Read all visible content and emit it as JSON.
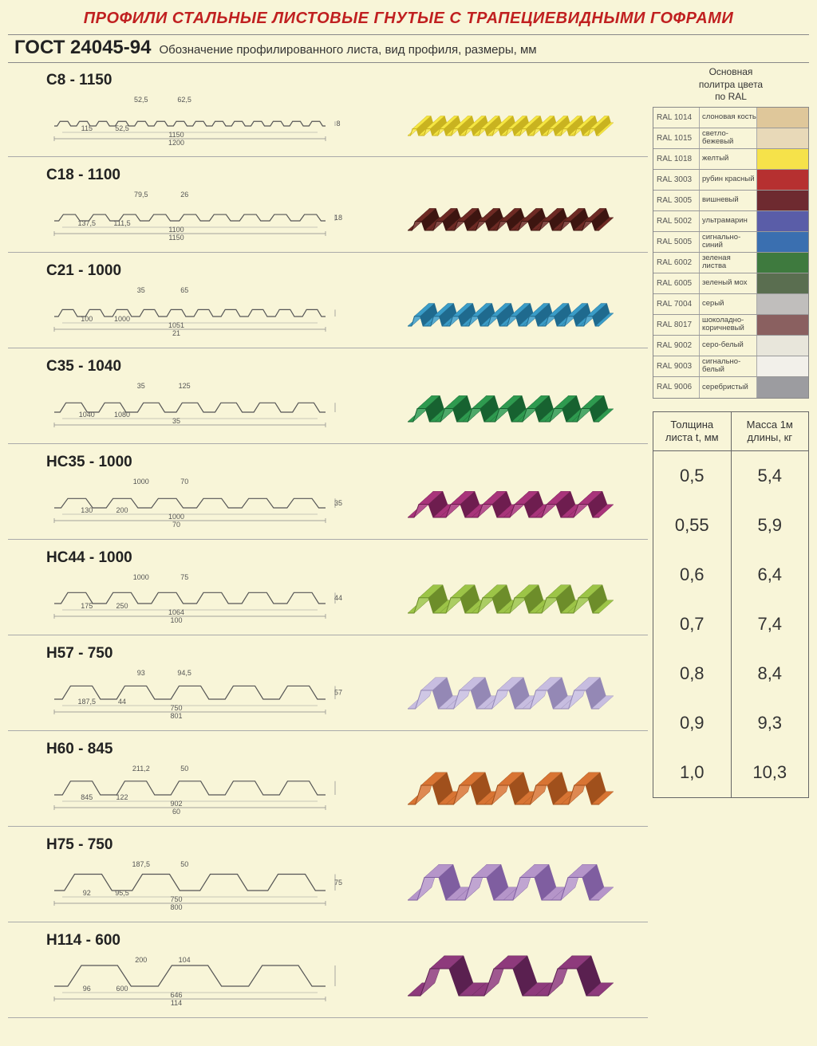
{
  "header": {
    "main_title": "ПРОФИЛИ СТАЛЬНЫЕ ЛИСТОВЫЕ ГНУТЫЕ С ТРАПЕЦИЕВИДНЫМИ ГОФРАМИ",
    "gost_code": "ГОСТ 24045-94",
    "gost_desc": "Обозначение профилированного листа, вид профиля, размеры, мм"
  },
  "page_bg": "#f8f5d8",
  "title_color": "#c02020",
  "profiles": [
    {
      "name": "C8 - 1150",
      "color": "#f5e642",
      "color_shadow": "#c9b320",
      "ribs": 14,
      "rib_h": 8,
      "dims": [
        "52,5",
        "62,5",
        "115",
        "52,5",
        "1150",
        "1200",
        "8"
      ]
    },
    {
      "name": "C18 - 1100",
      "color": "#6e2a24",
      "color_shadow": "#3d1510",
      "ribs": 9,
      "rib_h": 18,
      "dims": [
        "79,5",
        "26",
        "137,5",
        "111,5",
        "1100",
        "1150",
        "18"
      ]
    },
    {
      "name": "C21 - 1000",
      "color": "#3a9cc7",
      "color_shadow": "#1f6a8e",
      "ribs": 10,
      "rib_h": 21,
      "dims": [
        "35",
        "65",
        "100",
        "1000",
        "1051",
        "21"
      ]
    },
    {
      "name": "C35 - 1040",
      "color": "#2e9a4f",
      "color_shadow": "#176230",
      "ribs": 7,
      "rib_h": 35,
      "dims": [
        "35",
        "125",
        "1040",
        "1080",
        "35"
      ]
    },
    {
      "name": "HC35 - 1000",
      "color": "#a8347a",
      "color_shadow": "#6e1d4f",
      "ribs": 6,
      "rib_h": 35,
      "dims": [
        "1000",
        "70",
        "130",
        "200",
        "1000",
        "70",
        "35"
      ]
    },
    {
      "name": "HC44 - 1000",
      "color": "#9cc447",
      "color_shadow": "#6d8d2a",
      "ribs": 6,
      "rib_h": 44,
      "dims": [
        "1000",
        "75",
        "175",
        "250",
        "1064",
        "100",
        "44"
      ]
    },
    {
      "name": "H57 - 750",
      "color": "#c7bde0",
      "color_shadow": "#9488b5",
      "ribs": 5,
      "rib_h": 57,
      "dims": [
        "93",
        "94,5",
        "187,5",
        "44",
        "750",
        "801",
        "57"
      ]
    },
    {
      "name": "H60 - 845",
      "color": "#d87433",
      "color_shadow": "#a0501c",
      "ribs": 5,
      "rib_h": 60,
      "dims": [
        "211,2",
        "50",
        "845",
        "122",
        "902",
        "60"
      ]
    },
    {
      "name": "H75 - 750",
      "color": "#b595c9",
      "color_shadow": "#7f5ea0",
      "ribs": 4,
      "rib_h": 75,
      "dims": [
        "187,5",
        "50",
        "92",
        "95,5",
        "750",
        "800",
        "75"
      ]
    },
    {
      "name": "H114 - 600",
      "color": "#8e3a7c",
      "color_shadow": "#5a2050",
      "ribs": 3,
      "rib_h": 114,
      "dims": [
        "200",
        "104",
        "96",
        "600",
        "646",
        "114"
      ]
    }
  ],
  "ral": {
    "title_line1": "Основная",
    "title_line2": "политра цвета",
    "title_line3": "по RAL",
    "rows": [
      {
        "code": "RAL 1014",
        "name": "слоновая кость",
        "hex": "#dfc79a"
      },
      {
        "code": "RAL 1015",
        "name": "светло-бежевый",
        "hex": "#e8d9b8"
      },
      {
        "code": "RAL 1018",
        "name": "желтый",
        "hex": "#f6e24a"
      },
      {
        "code": "RAL 3003",
        "name": "рубин красный",
        "hex": "#b63030"
      },
      {
        "code": "RAL 3005",
        "name": "вишневый",
        "hex": "#6e2a30"
      },
      {
        "code": "RAL 5002",
        "name": "ультрамарин",
        "hex": "#5a5da8"
      },
      {
        "code": "RAL 5005",
        "name": "сигнально-синий",
        "hex": "#3a6fb0"
      },
      {
        "code": "RAL 6002",
        "name": "зеленая листва",
        "hex": "#3e7a3e"
      },
      {
        "code": "RAL 6005",
        "name": "зеленый мох",
        "hex": "#5a6e50"
      },
      {
        "code": "RAL 7004",
        "name": "серый",
        "hex": "#c0bebc"
      },
      {
        "code": "RAL 8017",
        "name": "шоколадно-коричневый",
        "hex": "#8a6060"
      },
      {
        "code": "RAL 9002",
        "name": "серо-белый",
        "hex": "#e8e6db"
      },
      {
        "code": "RAL 9003",
        "name": "сигнально-белый",
        "hex": "#f2f0ea"
      },
      {
        "code": "RAL 9006",
        "name": "серебристый",
        "hex": "#9c9ca0"
      }
    ]
  },
  "mass_table": {
    "header_thickness": "Толщина листа t, мм",
    "header_mass": "Масса 1м длины, кг",
    "rows": [
      {
        "t": "0,5",
        "m": "5,4"
      },
      {
        "t": "0,55",
        "m": "5,9"
      },
      {
        "t": "0,6",
        "m": "6,4"
      },
      {
        "t": "0,7",
        "m": "7,4"
      },
      {
        "t": "0,8",
        "m": "8,4"
      },
      {
        "t": "0,9",
        "m": "9,3"
      },
      {
        "t": "1,0",
        "m": "10,3"
      }
    ]
  }
}
